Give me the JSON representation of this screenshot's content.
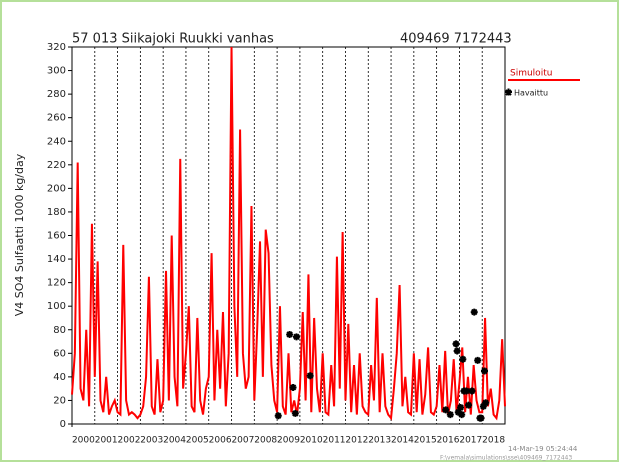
{
  "chart_data": {
    "type": "line",
    "title": "57 013 Siikajoki Ruukki vanhas",
    "subtitle": "409469 7172443",
    "ylabel": "V4 SO4 Sulfaatti 1000 kg/day",
    "timestamp": "14-Mar-19 05:24:44",
    "filepath": "F:\\vemala\\simulations\\sse\\409469_7172443",
    "xlim": [
      2000,
      2019
    ],
    "ylim": [
      0,
      320
    ],
    "xticks": [
      2000,
      2001,
      2002,
      2003,
      2004,
      2005,
      2006,
      2007,
      2008,
      2009,
      2010,
      2011,
      2012,
      2013,
      2014,
      2015,
      2016,
      2017,
      2018
    ],
    "yticks": [
      0,
      20,
      40,
      60,
      80,
      100,
      120,
      140,
      160,
      180,
      200,
      220,
      240,
      260,
      280,
      300,
      320
    ],
    "grid": true,
    "legend": "right",
    "series": [
      {
        "name": "Simuloitu",
        "color": "#ff0000",
        "x": [
          2000,
          2000.125,
          2000.25,
          2000.375,
          2000.5,
          2000.625,
          2000.75,
          2000.875,
          2001,
          2001.125,
          2001.25,
          2001.375,
          2001.5,
          2001.625,
          2001.75,
          2001.875,
          2002,
          2002.125,
          2002.25,
          2002.375,
          2002.5,
          2002.625,
          2002.75,
          2002.875,
          2003,
          2003.125,
          2003.25,
          2003.375,
          2003.5,
          2003.625,
          2003.75,
          2003.875,
          2004,
          2004.125,
          2004.25,
          2004.375,
          2004.5,
          2004.625,
          2004.75,
          2004.875,
          2005,
          2005.125,
          2005.25,
          2005.375,
          2005.5,
          2005.625,
          2005.75,
          2005.875,
          2006,
          2006.125,
          2006.25,
          2006.375,
          2006.5,
          2006.625,
          2006.75,
          2006.875,
          2007,
          2007.125,
          2007.25,
          2007.375,
          2007.5,
          2007.625,
          2007.75,
          2007.875,
          2008,
          2008.125,
          2008.25,
          2008.375,
          2008.5,
          2008.625,
          2008.75,
          2008.875,
          2009,
          2009.125,
          2009.25,
          2009.375,
          2009.5,
          2009.625,
          2009.75,
          2009.875,
          2010,
          2010.125,
          2010.25,
          2010.375,
          2010.5,
          2010.625,
          2010.75,
          2010.875,
          2011,
          2011.125,
          2011.25,
          2011.375,
          2011.5,
          2011.625,
          2011.75,
          2011.875,
          2012,
          2012.125,
          2012.25,
          2012.375,
          2012.5,
          2012.625,
          2012.75,
          2012.875,
          2013,
          2013.125,
          2013.25,
          2013.375,
          2013.5,
          2013.625,
          2013.75,
          2013.875,
          2014,
          2014.125,
          2014.25,
          2014.375,
          2014.5,
          2014.625,
          2014.75,
          2014.875,
          2015,
          2015.125,
          2015.25,
          2015.375,
          2015.5,
          2015.625,
          2015.75,
          2015.875,
          2016,
          2016.125,
          2016.25,
          2016.375,
          2016.5,
          2016.625,
          2016.75,
          2016.875,
          2017,
          2017.125,
          2017.25,
          2017.375,
          2017.5,
          2017.625,
          2017.75,
          2017.875,
          2018,
          2018.125,
          2018.25,
          2018.375,
          2018.5,
          2018.625,
          2018.75,
          2018.875,
          2019
        ],
        "values": [
          25,
          60,
          222,
          30,
          20,
          80,
          15,
          170,
          40,
          138,
          20,
          10,
          40,
          8,
          15,
          20,
          10,
          8,
          152,
          20,
          8,
          10,
          8,
          5,
          8,
          15,
          40,
          125,
          15,
          8,
          55,
          10,
          20,
          130,
          20,
          160,
          40,
          15,
          225,
          30,
          60,
          100,
          15,
          10,
          90,
          20,
          8,
          30,
          40,
          145,
          20,
          80,
          30,
          95,
          15,
          60,
          320,
          100,
          40,
          250,
          60,
          30,
          40,
          185,
          20,
          80,
          155,
          40,
          165,
          145,
          50,
          20,
          10,
          100,
          15,
          8,
          60,
          10,
          20,
          8,
          30,
          95,
          20,
          127,
          10,
          90,
          30,
          10,
          60,
          10,
          8,
          50,
          15,
          142,
          30,
          163,
          20,
          85,
          10,
          50,
          8,
          60,
          15,
          10,
          8,
          50,
          20,
          107,
          10,
          60,
          15,
          8,
          5,
          30,
          60,
          118,
          15,
          40,
          10,
          8,
          60,
          10,
          55,
          8,
          25,
          65,
          10,
          8,
          15,
          50,
          10,
          62,
          8,
          20,
          55,
          10,
          35,
          65,
          10,
          40,
          8,
          50,
          20,
          10,
          10,
          90,
          15,
          30,
          8,
          5,
          20,
          72,
          15
        ]
      },
      {
        "name": "Havaittu",
        "color": "#000000",
        "x": [
          2009.05,
          2009.55,
          2009.7,
          2009.8,
          2009.85,
          2010.45,
          2016.4,
          2016.6,
          2016.85,
          2016.9,
          2016.95,
          2017.05,
          2017.1,
          2017.15,
          2017.2,
          2017.3,
          2017.4,
          2017.55,
          2017.65,
          2017.8,
          2017.9,
          2017.95,
          2018.05,
          2018.1,
          2018.15
        ],
        "values": [
          7,
          76,
          31,
          9,
          74,
          41,
          12,
          8,
          68,
          62,
          10,
          14,
          8,
          55,
          28,
          28,
          16,
          28,
          95,
          54,
          5,
          5,
          15,
          45,
          18
        ]
      }
    ]
  }
}
